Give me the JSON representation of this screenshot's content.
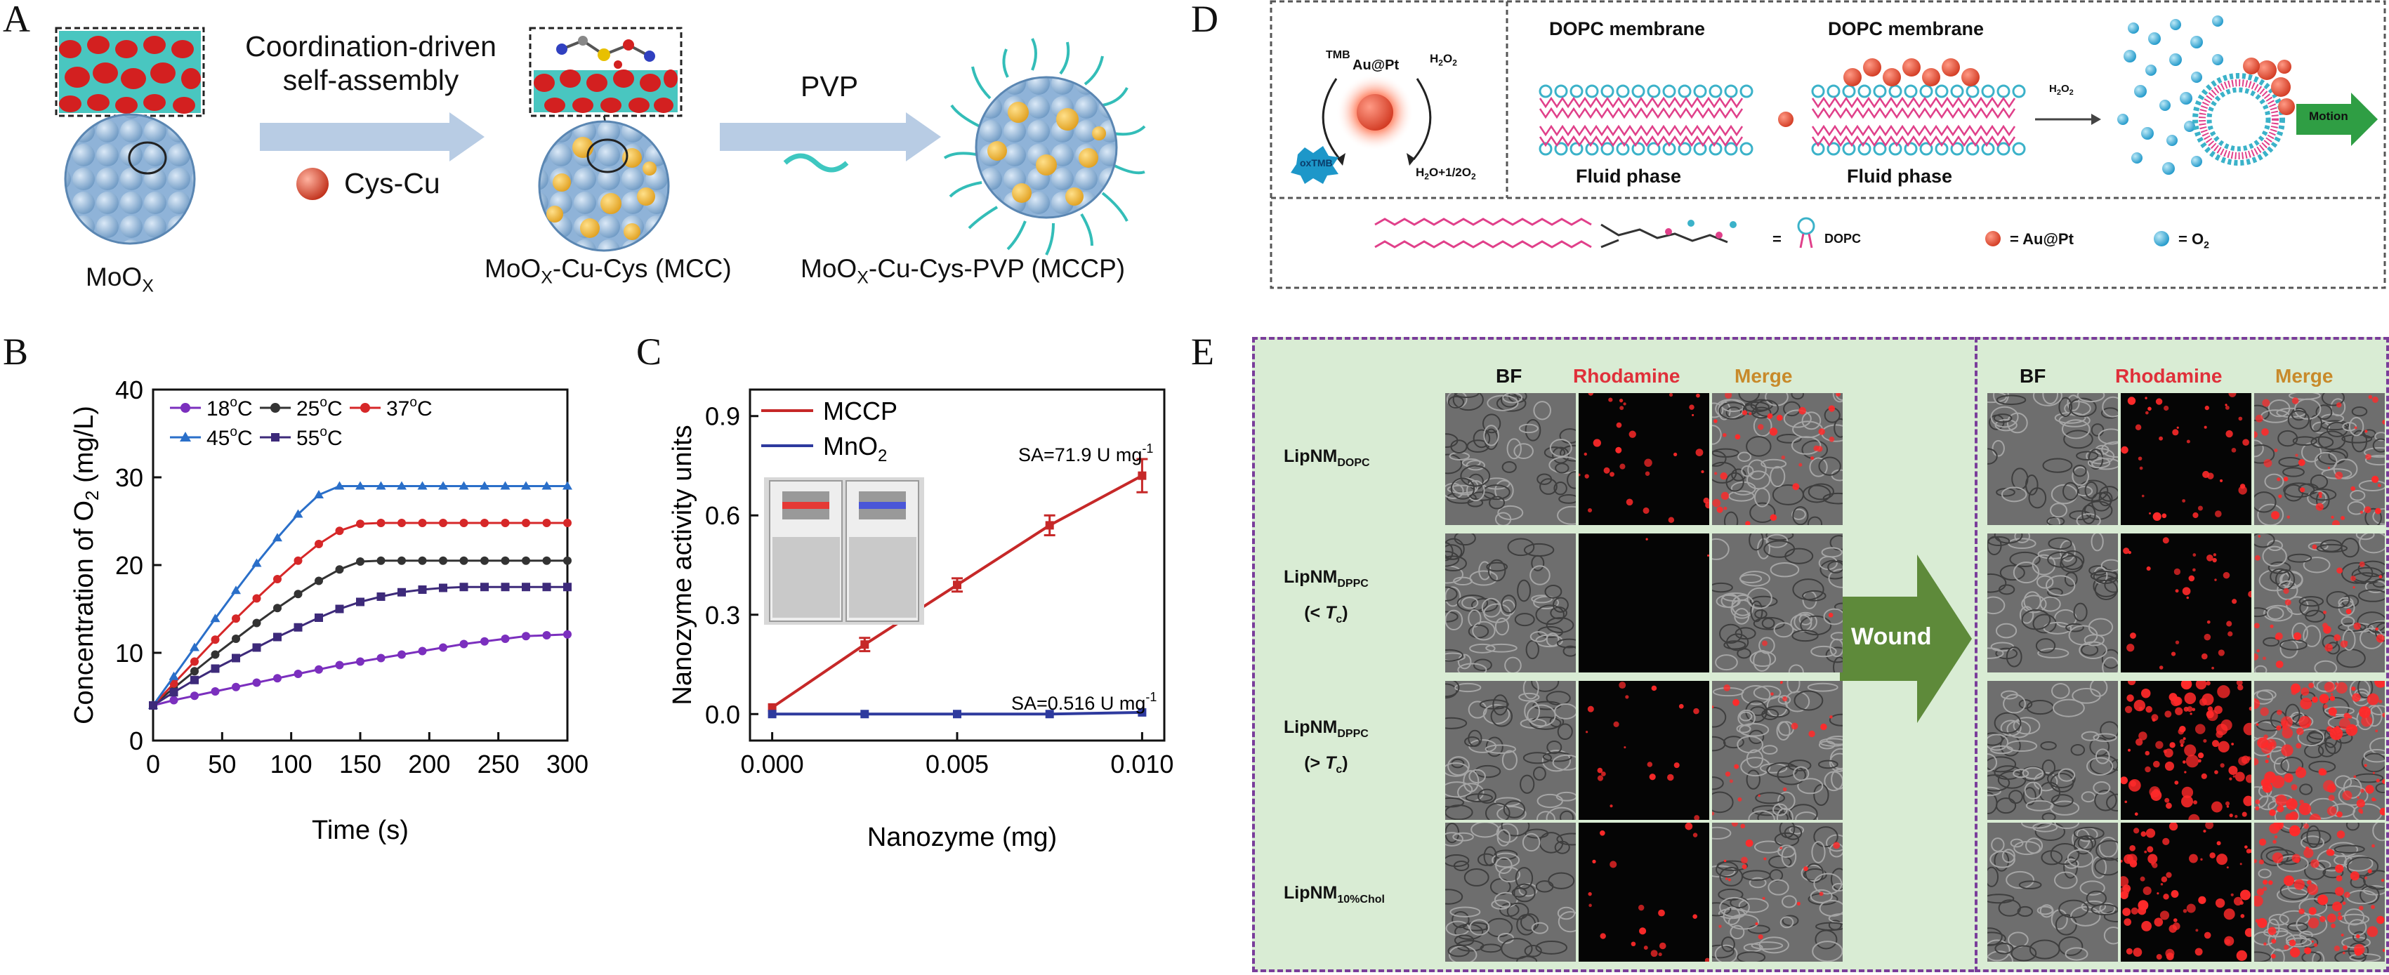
{
  "panels": {
    "A": "A",
    "B": "B",
    "C": "C",
    "D": "D",
    "E": "E"
  },
  "panelA": {
    "step1_line1": "Coordination-driven",
    "step1_line2": "self-assembly",
    "reagent1": "Cys-Cu",
    "reagent2": "PVP",
    "label_moox": "MoO",
    "label_moox_sub": "X",
    "label_mcc": "MoO",
    "label_mcc_sub": "X",
    "label_mcc_rest": "-Cu-Cys (MCC)",
    "label_mccp": "MoO",
    "label_mccp_sub": "X",
    "label_mccp_rest": "-Cu-Cys-PVP (MCCP)"
  },
  "panelD": {
    "tmb": "TMB",
    "catalyst": "Au@Pt",
    "h2o2": "H",
    "h2o2_sub1": "2",
    "h2o2_o": "O",
    "h2o2_sub2": "2",
    "oxtmb": "oxTMB",
    "products": "H",
    "products_sub": "2",
    "products_rest": "O+1/2O",
    "products_sub2": "2",
    "membrane1": "DOPC membrane",
    "membrane2": "DOPC membrane",
    "phase1": "Fluid phase",
    "phase2": "Fluid phase",
    "arrow_h2o2": "H",
    "arrow_h2o2_sub": "2",
    "arrow_h2o2_o": "O",
    "arrow_h2o2_sub2": "2",
    "motion": "Motion",
    "legend_dopc": "= ",
    "legend_dopc_label": "DOPC",
    "legend_aupt": "= Au@Pt",
    "legend_o2": "= O",
    "legend_o2_sub": "2"
  },
  "panelE": {
    "col_bf": "BF",
    "col_rhodamine": "Rhodamine",
    "col_merge": "Merge",
    "wound": "Wound",
    "rows": [
      {
        "main": "LipNM",
        "sub": "DOPC",
        "extra": ""
      },
      {
        "main": "LipNM",
        "sub": "DPPC",
        "extra_pre": "(< ",
        "extra_t": "T",
        "extra_tsub": "c",
        "extra_post": ")"
      },
      {
        "main": "LipNM",
        "sub": "DPPC",
        "extra_pre": "(> ",
        "extra_t": "T",
        "extra_tsub": "c",
        "extra_post": ")"
      },
      {
        "main": "LipNM",
        "sub": "10%Chol",
        "extra": ""
      }
    ]
  },
  "chart_data": [
    {
      "panel": "B",
      "type": "line",
      "xlabel": "Time (s)",
      "ylabel": "Concentration of O",
      "ylabel_sub": "2",
      "ylabel_unit": " (mg/L)",
      "xlim": [
        0,
        300
      ],
      "ylim": [
        0,
        40
      ],
      "xticks": [
        0,
        50,
        100,
        150,
        200,
        250,
        300
      ],
      "yticks": [
        0,
        10,
        20,
        30,
        40
      ],
      "legend": "top-left",
      "x": [
        0,
        15,
        30,
        45,
        60,
        75,
        90,
        105,
        120,
        135,
        150,
        165,
        180,
        195,
        210,
        225,
        240,
        255,
        270,
        285,
        300
      ],
      "series": [
        {
          "name": "18°C",
          "name_main": "18",
          "name_sup": "o",
          "name_unit": "C",
          "color": "#7b2fbe",
          "marker": "circle",
          "values": [
            4.0,
            4.6,
            5.1,
            5.6,
            6.1,
            6.6,
            7.1,
            7.6,
            8.1,
            8.6,
            9.0,
            9.4,
            9.8,
            10.2,
            10.6,
            11.0,
            11.3,
            11.6,
            11.9,
            12.0,
            12.1
          ]
        },
        {
          "name": "25°C",
          "name_main": "25",
          "name_sup": "o",
          "name_unit": "C",
          "color": "#333333",
          "marker": "circle",
          "values": [
            4.0,
            6.0,
            7.9,
            9.8,
            11.6,
            13.4,
            15.1,
            16.7,
            18.2,
            19.5,
            20.4,
            20.5,
            20.5,
            20.5,
            20.5,
            20.5,
            20.5,
            20.5,
            20.5,
            20.5,
            20.5
          ]
        },
        {
          "name": "37°C",
          "name_main": "37",
          "name_sup": "o",
          "name_unit": "C",
          "color": "#d62728",
          "marker": "circle",
          "values": [
            4.0,
            6.5,
            9.0,
            11.5,
            13.9,
            16.2,
            18.4,
            20.5,
            22.4,
            23.9,
            24.7,
            24.8,
            24.8,
            24.8,
            24.8,
            24.8,
            24.8,
            24.8,
            24.8,
            24.8,
            24.8
          ]
        },
        {
          "name": "45°C",
          "name_main": "45",
          "name_sup": "o",
          "name_unit": "C",
          "color": "#2a6fc9",
          "marker": "triangle",
          "values": [
            4.0,
            7.3,
            10.6,
            13.9,
            17.1,
            20.2,
            23.1,
            25.8,
            28.0,
            29.0,
            29.0,
            29.0,
            29.0,
            29.0,
            29.0,
            29.0,
            29.0,
            29.0,
            29.0,
            29.0,
            29.0
          ]
        },
        {
          "name": "55°C",
          "name_main": "55",
          "name_sup": "o",
          "name_unit": "C",
          "color": "#3d2a7a",
          "marker": "square",
          "values": [
            4.0,
            5.5,
            6.9,
            8.2,
            9.4,
            10.6,
            11.8,
            12.9,
            14.0,
            15.0,
            15.8,
            16.4,
            16.9,
            17.2,
            17.4,
            17.5,
            17.5,
            17.5,
            17.5,
            17.5,
            17.5
          ]
        }
      ]
    },
    {
      "panel": "C",
      "type": "line",
      "xlabel": "Nanozyme (mg)",
      "ylabel": "Nanozyme activity units",
      "xlim": [
        0,
        0.01
      ],
      "ylim": [
        -0.08,
        0.98
      ],
      "xticks": [
        0.0,
        0.005,
        0.01
      ],
      "xtick_labels": [
        "0.000",
        "0.005",
        "0.010"
      ],
      "yticks": [
        0.0,
        0.3,
        0.6,
        0.9
      ],
      "ytick_labels": [
        "0.0",
        "0.3",
        "0.6",
        "0.9"
      ],
      "legend": "top-left",
      "x": [
        0.0,
        0.0025,
        0.005,
        0.0075,
        0.01
      ],
      "series": [
        {
          "name": "MCCP",
          "color": "#c62828",
          "values": [
            0.02,
            0.21,
            0.39,
            0.57,
            0.72
          ],
          "errors": [
            0.0,
            0.02,
            0.02,
            0.03,
            0.05
          ]
        },
        {
          "name": "MnO2",
          "name_main": "MnO",
          "name_sub": "2",
          "color": "#2e3a9e",
          "values": [
            0.0,
            0.0,
            0.0,
            0.0,
            0.005
          ],
          "errors": [
            0,
            0,
            0,
            0,
            0
          ]
        }
      ],
      "annotations": [
        {
          "text": "SA=71.9 U mg",
          "sup": "-1"
        },
        {
          "text": "SA=0.516 U mg",
          "sup": "-1"
        }
      ]
    }
  ],
  "colors": {
    "arrow": "#b8cce4",
    "red_spot": "#e53935",
    "blue_bead": "#2ba7d4",
    "green_bg": "#d9ecd4",
    "wound_arrow": "#5e8a3a",
    "motion_arrow": "#2f9e44"
  }
}
